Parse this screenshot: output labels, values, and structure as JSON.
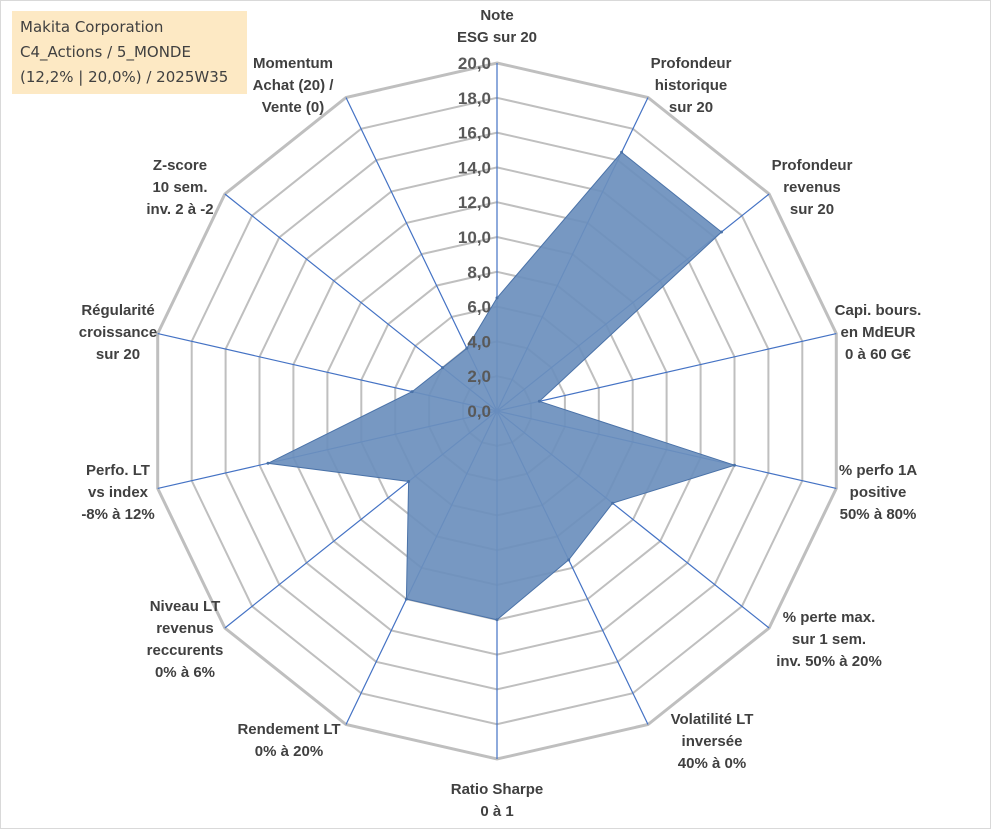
{
  "title_box": {
    "line1": "Makita Corporation",
    "line2": "C4_Actions / 5_MONDE",
    "line3": "(12,2% | 20,0%) / 2025W35",
    "background": "#fde9c4"
  },
  "chart_data": {
    "type": "radar",
    "axis_range": [
      0,
      20
    ],
    "tick_step": 2,
    "tick_labels": [
      "0,0",
      "2,0",
      "4,0",
      "6,0",
      "8,0",
      "10,0",
      "12,0",
      "14,0",
      "16,0",
      "18,0",
      "20,0"
    ],
    "grid": true,
    "axes": [
      "Note\nESG sur 20",
      "Profondeur\nhistorique\nsur 20",
      "Profondeur\nrevenus\nsur 20",
      "Capi. bours.\nen MdEUR\n0 à 60 G€",
      "% perfo 1A\npositive\n50% à 80%",
      "% perte max.\nsur 1 sem.\ninv. 50% à 20%",
      "Volatilité LT\ninversée\n40% à 0%",
      "Ratio Sharpe\n0 à 1",
      "Rendement LT\n0% à 20%",
      "Niveau LT\nrevenus\nreccurents\n0% à 6%",
      "Perfo. LT\nvs index\n-8% à 12%",
      "Régularité\ncroissance\nsur 20",
      "Z-score\n10 sem.\ninv. 2 à -2",
      "Momentum\nAchat (20) /\nVente (0)"
    ],
    "series": [
      {
        "values": [
          6.5,
          16.5,
          16.5,
          2.5,
          14.0,
          8.5,
          9.5,
          12.0,
          12.0,
          6.5,
          13.5,
          5.0,
          4.0,
          4.0
        ],
        "color": "#6b8fbd",
        "stroke": "#4a72a8"
      }
    ],
    "colors": {
      "grid": "#bfbfbf",
      "spoke": "#4472c4",
      "text": "#404040",
      "tick": "#595959"
    }
  }
}
